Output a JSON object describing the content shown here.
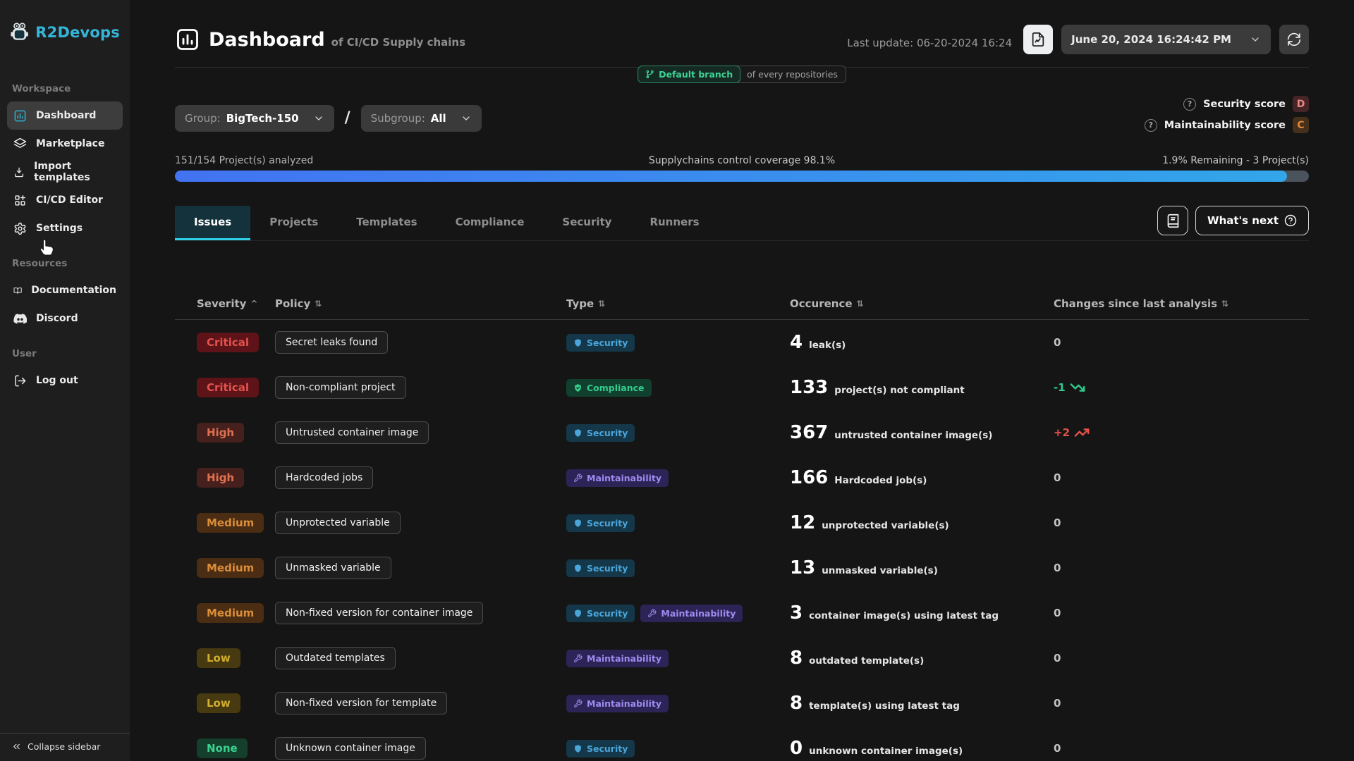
{
  "sidebar": {
    "brand": "R2Devops",
    "collapse_label": "Collapse sidebar",
    "sections": [
      {
        "label": "Workspace",
        "items": [
          {
            "label": "Dashboard",
            "icon": "dashboard",
            "active": true
          },
          {
            "label": "Marketplace",
            "icon": "marketplace",
            "active": false
          },
          {
            "label": "Import templates",
            "icon": "import-templates",
            "active": false
          },
          {
            "label": "CI/CD Editor",
            "icon": "cicd-editor",
            "active": false
          },
          {
            "label": "Settings",
            "icon": "settings",
            "active": false
          }
        ]
      },
      {
        "label": "Resources",
        "items": [
          {
            "label": "Documentation",
            "icon": "documentation",
            "active": false
          },
          {
            "label": "Discord",
            "icon": "discord",
            "active": false
          }
        ]
      },
      {
        "label": "User",
        "items": [
          {
            "label": "Log out",
            "icon": "logout",
            "active": false
          }
        ]
      }
    ]
  },
  "header": {
    "title": "Dashboard",
    "subtitle": "of CI/CD Supply chains",
    "last_update": "Last update: 06-20-2024 16:24",
    "datetime": "June 20, 2024 16:24:42 PM",
    "branch_badge": "Default branch",
    "branch_scope": "of every repositories"
  },
  "filters": {
    "group_label": "Group:",
    "group_value": "BigTech-150",
    "separator": "/",
    "subgroup_label": "Subgroup:",
    "subgroup_value": "All"
  },
  "scores": [
    {
      "label": "Security score",
      "grade": "D"
    },
    {
      "label": "Maintainability score",
      "grade": "C"
    }
  ],
  "progress": {
    "analyzed": "151/154 Project(s) analyzed",
    "coverage": "Supplychains control coverage 98.1%",
    "remaining": "1.9% Remaining - 3 Project(s)",
    "percent": 98.1
  },
  "tabs": [
    {
      "label": "Issues",
      "active": true
    },
    {
      "label": "Projects",
      "active": false
    },
    {
      "label": "Templates",
      "active": false
    },
    {
      "label": "Compliance",
      "active": false
    },
    {
      "label": "Security",
      "active": false
    },
    {
      "label": "Runners",
      "active": false
    }
  ],
  "actions": {
    "whats_next": "What's next"
  },
  "issues_table": {
    "columns": [
      {
        "label": "Severity",
        "sort": "asc"
      },
      {
        "label": "Policy",
        "sort": "both"
      },
      {
        "label": "Type",
        "sort": "both"
      },
      {
        "label": "Occurence",
        "sort": "both"
      },
      {
        "label": "Changes since last analysis",
        "sort": "both"
      }
    ],
    "rows": [
      {
        "severity": "Critical",
        "level": "critical",
        "policy": "Secret leaks found",
        "types": [
          {
            "label": "Security",
            "kind": "security"
          }
        ],
        "count": "4",
        "unit": "leak(s)",
        "change": "0",
        "trend": "none"
      },
      {
        "severity": "Critical",
        "level": "critical",
        "policy": "Non-compliant project",
        "types": [
          {
            "label": "Compliance",
            "kind": "compliance"
          }
        ],
        "count": "133",
        "unit": "project(s) not compliant",
        "change": "-1",
        "trend": "down"
      },
      {
        "severity": "High",
        "level": "high",
        "policy": "Untrusted container image",
        "types": [
          {
            "label": "Security",
            "kind": "security"
          }
        ],
        "count": "367",
        "unit": "untrusted container image(s)",
        "change": "+2",
        "trend": "up"
      },
      {
        "severity": "High",
        "level": "high",
        "policy": "Hardcoded jobs",
        "types": [
          {
            "label": "Maintainability",
            "kind": "maintainability"
          }
        ],
        "count": "166",
        "unit": "Hardcoded job(s)",
        "change": "0",
        "trend": "none"
      },
      {
        "severity": "Medium",
        "level": "medium",
        "policy": "Unprotected variable",
        "types": [
          {
            "label": "Security",
            "kind": "security"
          }
        ],
        "count": "12",
        "unit": "unprotected variable(s)",
        "change": "0",
        "trend": "none"
      },
      {
        "severity": "Medium",
        "level": "medium",
        "policy": "Unmasked variable",
        "types": [
          {
            "label": "Security",
            "kind": "security"
          }
        ],
        "count": "13",
        "unit": "unmasked variable(s)",
        "change": "0",
        "trend": "none"
      },
      {
        "severity": "Medium",
        "level": "medium",
        "policy": "Non-fixed version for container image",
        "types": [
          {
            "label": "Security",
            "kind": "security"
          },
          {
            "label": "Maintainability",
            "kind": "maintainability"
          }
        ],
        "count": "3",
        "unit": "container image(s) using latest tag",
        "change": "0",
        "trend": "none"
      },
      {
        "severity": "Low",
        "level": "low",
        "policy": "Outdated templates",
        "types": [
          {
            "label": "Maintainability",
            "kind": "maintainability"
          }
        ],
        "count": "8",
        "unit": "outdated template(s)",
        "change": "0",
        "trend": "none"
      },
      {
        "severity": "Low",
        "level": "low",
        "policy": "Non-fixed version for template",
        "types": [
          {
            "label": "Maintainability",
            "kind": "maintainability"
          }
        ],
        "count": "8",
        "unit": "template(s) using latest tag",
        "change": "0",
        "trend": "none"
      },
      {
        "severity": "None",
        "level": "none",
        "policy": "Unknown container image",
        "types": [
          {
            "label": "Security",
            "kind": "security"
          }
        ],
        "count": "0",
        "unit": "unknown container image(s)",
        "change": "0",
        "trend": "none"
      }
    ]
  },
  "colors": {
    "brand": "#35b5d8",
    "progress_start": "#4273f2",
    "progress_end": "#33a6ea",
    "severity": {
      "critical": {
        "bg": "#5d1317",
        "fg": "#e4534f"
      },
      "high": {
        "bg": "#46201c",
        "fg": "#e0714f"
      },
      "medium": {
        "bg": "#4a2d12",
        "fg": "#db8d3a"
      },
      "low": {
        "bg": "#473a10",
        "fg": "#d2ad30"
      },
      "none": {
        "bg": "#143f2d",
        "fg": "#3bd190"
      }
    },
    "types": {
      "security": {
        "bg": "#14384a",
        "fg": "#4ba5d9"
      },
      "compliance": {
        "bg": "#11402e",
        "fg": "#35cb8d"
      },
      "maintainability": {
        "bg": "#2c2356",
        "fg": "#9f8bf0"
      }
    },
    "trend": {
      "up": "#e55348",
      "down": "#2fcb8f",
      "none": "#c4c4c4"
    },
    "grades": {
      "D": {
        "bg": "#472428",
        "fg": "#e98780"
      },
      "C": {
        "bg": "#45301c",
        "fg": "#e1873a"
      }
    }
  }
}
